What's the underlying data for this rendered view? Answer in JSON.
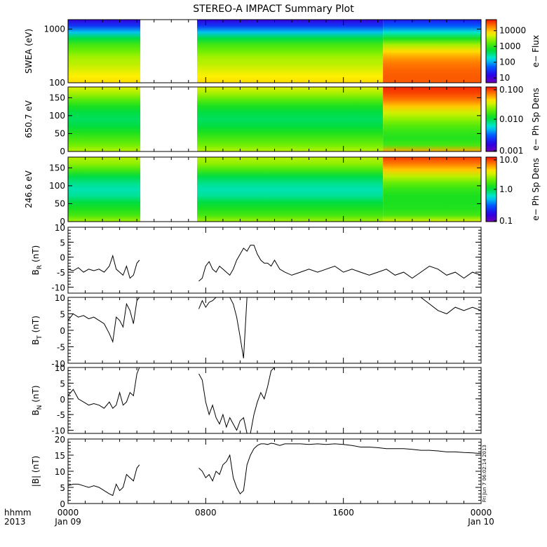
{
  "title": "STEREO-A IMPACT Summary Plot",
  "x_axis": {
    "corner_labels": [
      "hhmm",
      "2013"
    ],
    "ticks": [
      {
        "hours": 0,
        "label": "0000",
        "sub": "Jan 09"
      },
      {
        "hours": 8,
        "label": "0800",
        "sub": ""
      },
      {
        "hours": 16,
        "label": "1600",
        "sub": ""
      },
      {
        "hours": 24,
        "label": "0000",
        "sub": "Jan 10"
      }
    ],
    "minor_step_hours": 1,
    "range_hours": [
      0,
      24
    ]
  },
  "spectrogram_panels": [
    {
      "id": "swea",
      "ylabel": "SWEA (eV)",
      "ylim": [
        100,
        1500
      ],
      "log_y": true,
      "yticks": [
        {
          "v": 100,
          "label": "100"
        },
        {
          "v": 1000,
          "label": "1000"
        }
      ],
      "colorbar": {
        "title": "e− Flux",
        "log": true,
        "range": [
          5,
          50000
        ],
        "ticks": [
          {
            "v": 10,
            "label": "10"
          },
          {
            "v": 100,
            "label": "100"
          },
          {
            "v": 1000,
            "label": "1000"
          },
          {
            "v": 10000,
            "label": "10000"
          }
        ]
      }
    },
    {
      "id": "pad650",
      "ylabel": "650.7 eV",
      "ylim": [
        0,
        180
      ],
      "log_y": false,
      "yticks": [
        {
          "v": 0,
          "label": "0"
        },
        {
          "v": 50,
          "label": "50"
        },
        {
          "v": 100,
          "label": "100"
        },
        {
          "v": 150,
          "label": "150"
        }
      ],
      "colorbar": {
        "title": "e− Ph Sp Dens",
        "log": true,
        "range": [
          0.001,
          0.1
        ],
        "ticks": [
          {
            "v": 0.001,
            "label": "0.001"
          },
          {
            "v": 0.01,
            "label": "0.010"
          },
          {
            "v": 0.1,
            "label": "0.100"
          }
        ]
      }
    },
    {
      "id": "pad246",
      "ylabel": "246.6 eV",
      "ylim": [
        0,
        180
      ],
      "log_y": false,
      "yticks": [
        {
          "v": 0,
          "label": "0"
        },
        {
          "v": 50,
          "label": "50"
        },
        {
          "v": 100,
          "label": "100"
        },
        {
          "v": 150,
          "label": "150"
        }
      ],
      "colorbar": {
        "title": "e− Ph Sp Dens",
        "log": true,
        "range": [
          0.1,
          10
        ],
        "ticks": [
          {
            "v": 0.1,
            "label": "0.1"
          },
          {
            "v": 1,
            "label": "1.0"
          },
          {
            "v": 10,
            "label": "10.0"
          }
        ]
      }
    }
  ],
  "chart_data": [
    {
      "type": "line",
      "name": "BR",
      "ylabel_base": "B",
      "ylabel_sub": "R",
      "ylabel_unit": " (nT)",
      "ylim": [
        -12,
        10
      ],
      "yticks": [
        -10,
        -5,
        0,
        5,
        10
      ],
      "data_gap_hours": [
        4.2,
        7.5
      ],
      "x": [
        0,
        0.3,
        0.6,
        0.9,
        1.2,
        1.5,
        1.8,
        2.1,
        2.4,
        2.6,
        2.8,
        3.0,
        3.2,
        3.4,
        3.6,
        3.8,
        4.0,
        4.15,
        7.6,
        7.8,
        8.0,
        8.2,
        8.4,
        8.6,
        8.8,
        9.0,
        9.2,
        9.4,
        9.6,
        9.8,
        10.0,
        10.2,
        10.4,
        10.6,
        10.8,
        11.0,
        11.2,
        11.4,
        11.6,
        11.8,
        12.0,
        12.3,
        12.6,
        13.0,
        13.5,
        14.0,
        14.5,
        15.0,
        15.5,
        16.0,
        16.5,
        17.0,
        17.5,
        18.0,
        18.5,
        19.0,
        19.5,
        20.0,
        20.5,
        21.0,
        21.5,
        22.0,
        22.5,
        23.0,
        23.5,
        24.0
      ],
      "y": [
        -4,
        -4.5,
        -3.5,
        -5,
        -4,
        -4.5,
        -4,
        -5,
        -3,
        0.5,
        -4,
        -5,
        -6,
        -3,
        -7,
        -6,
        -2,
        -1,
        -8,
        -7,
        -3,
        -1.5,
        -4,
        -5,
        -3,
        -4,
        -5,
        -6,
        -4,
        -1,
        1,
        3,
        2,
        4,
        4,
        1,
        -1,
        -2,
        -2,
        -3,
        -1,
        -4,
        -5,
        -6,
        -5,
        -4,
        -5,
        -4,
        -3,
        -5,
        -4,
        -5,
        -6,
        -5,
        -4,
        -6,
        -5,
        -7,
        -5,
        -3,
        -4,
        -6,
        -5,
        -7,
        -5,
        -6
      ]
    },
    {
      "type": "line",
      "name": "BT",
      "ylabel_base": "B",
      "ylabel_sub": "T",
      "ylabel_unit": " (nT)",
      "ylim": [
        -10,
        10
      ],
      "yticks": [
        -10,
        -5,
        0,
        5,
        10
      ],
      "data_gap_hours": [
        4.2,
        7.5
      ],
      "x": [
        0,
        0.3,
        0.6,
        0.9,
        1.2,
        1.5,
        1.8,
        2.1,
        2.4,
        2.6,
        2.8,
        3.0,
        3.2,
        3.4,
        3.6,
        3.8,
        4.0,
        4.15,
        7.6,
        7.8,
        8.0,
        8.2,
        8.4,
        8.6,
        8.8,
        9.0,
        9.2,
        9.4,
        9.6,
        9.8,
        10.0,
        10.2,
        10.4,
        10.6,
        10.8,
        11.0,
        11.2,
        11.4,
        11.6,
        11.8,
        12.0,
        12.3,
        12.6,
        13.0,
        13.5,
        14.0,
        14.5,
        15.0,
        15.5,
        16.0,
        16.5,
        17.0,
        17.5,
        18.0,
        18.5,
        19.0,
        19.5,
        20.0,
        20.5,
        21.0,
        21.5,
        22.0,
        22.5,
        23.0,
        23.5,
        24.0
      ],
      "y": [
        3,
        5,
        4,
        4.5,
        3.5,
        4,
        3,
        2,
        -1,
        -3.5,
        4,
        3,
        1,
        8,
        6,
        2,
        9,
        10,
        6.5,
        9,
        7,
        8.5,
        9,
        10,
        10,
        10,
        10,
        10,
        8,
        4,
        -2,
        -8.5,
        10,
        10,
        10,
        10,
        10,
        10,
        10,
        10,
        10,
        10,
        10,
        10,
        10,
        10,
        10,
        10,
        10,
        10,
        10,
        10,
        10,
        10,
        10,
        10,
        10,
        10,
        10,
        8,
        6,
        5,
        7,
        6,
        7,
        6
      ]
    },
    {
      "type": "line",
      "name": "BN",
      "ylabel_base": "B",
      "ylabel_sub": "N",
      "ylabel_unit": " (nT)",
      "ylim": [
        -11,
        10
      ],
      "yticks": [
        -10,
        -5,
        0,
        5,
        10
      ],
      "data_gap_hours": [
        4.2,
        7.5
      ],
      "x": [
        0,
        0.3,
        0.6,
        0.9,
        1.2,
        1.5,
        1.8,
        2.1,
        2.4,
        2.6,
        2.8,
        3.0,
        3.2,
        3.4,
        3.6,
        3.8,
        4.0,
        4.15,
        7.6,
        7.8,
        8.0,
        8.2,
        8.4,
        8.6,
        8.8,
        9.0,
        9.2,
        9.4,
        9.6,
        9.8,
        10.0,
        10.2,
        10.4,
        10.6,
        10.8,
        11.0,
        11.2,
        11.4,
        11.6,
        11.8,
        12.0,
        12.3,
        12.6,
        13.0,
        13.5,
        14.0,
        14.5,
        15.0,
        15.5,
        16.0,
        16.5,
        17.0,
        17.5,
        18.0,
        18.5,
        19.0,
        19.5,
        20.0,
        20.5,
        21.0,
        21.5,
        22.0,
        22.5,
        23.0,
        23.5,
        24.0
      ],
      "y": [
        1,
        3,
        0,
        -1,
        -2,
        -1.5,
        -2,
        -3,
        -1,
        -3,
        -2,
        2,
        -2,
        -1,
        2,
        1,
        8,
        10,
        8,
        6,
        -1,
        -5,
        -2,
        -6,
        -8,
        -5,
        -9,
        -6,
        -8,
        -10,
        -7,
        -6,
        -11,
        -11,
        -5,
        -1,
        2,
        0,
        4,
        9,
        10,
        10,
        10,
        10,
        10,
        10,
        10,
        10,
        10,
        10,
        10,
        10,
        10,
        10,
        10,
        10,
        10,
        10,
        10,
        10,
        10,
        10,
        10,
        10,
        10,
        10
      ]
    },
    {
      "type": "line",
      "name": "Btot",
      "ylabel_base": "|B|",
      "ylabel_sub": "",
      "ylabel_unit": " (nT)",
      "ylim": [
        0,
        20
      ],
      "yticks": [
        0,
        5,
        10,
        15,
        20
      ],
      "data_gap_hours": [
        4.2,
        7.5
      ],
      "x": [
        0,
        0.3,
        0.6,
        0.9,
        1.2,
        1.5,
        1.8,
        2.1,
        2.4,
        2.6,
        2.8,
        3.0,
        3.2,
        3.4,
        3.6,
        3.8,
        4.0,
        4.15,
        7.6,
        7.8,
        8.0,
        8.2,
        8.4,
        8.6,
        8.8,
        9.0,
        9.2,
        9.4,
        9.6,
        9.8,
        10.0,
        10.2,
        10.4,
        10.6,
        10.8,
        11.0,
        11.2,
        11.4,
        11.6,
        11.8,
        12.0,
        12.3,
        12.6,
        13.0,
        13.5,
        14.0,
        14.5,
        15.0,
        15.5,
        16.0,
        16.5,
        17.0,
        17.5,
        18.0,
        18.5,
        19.0,
        19.5,
        20.0,
        20.5,
        21.0,
        21.5,
        22.0,
        22.5,
        23.0,
        23.5,
        24.0
      ],
      "y": [
        5.5,
        6,
        6,
        5.5,
        5,
        5.5,
        5,
        4,
        3,
        2.5,
        6,
        4,
        5,
        9,
        8,
        7,
        11,
        12,
        11,
        10,
        8,
        9,
        7,
        10,
        9,
        12,
        13,
        15,
        8,
        5,
        3,
        4,
        12,
        15,
        17,
        18,
        18.5,
        18.5,
        18.3,
        18.7,
        18.5,
        18,
        18.5,
        18.5,
        18.5,
        18.3,
        18.5,
        18.3,
        18.5,
        18.3,
        18,
        17.5,
        17.5,
        17.3,
        17,
        17,
        17,
        16.8,
        16.5,
        16.5,
        16.3,
        16,
        16,
        15.8,
        15.7,
        15.5
      ]
    }
  ],
  "side_stamp": "Fri Jun  7 06:02:14 2013"
}
